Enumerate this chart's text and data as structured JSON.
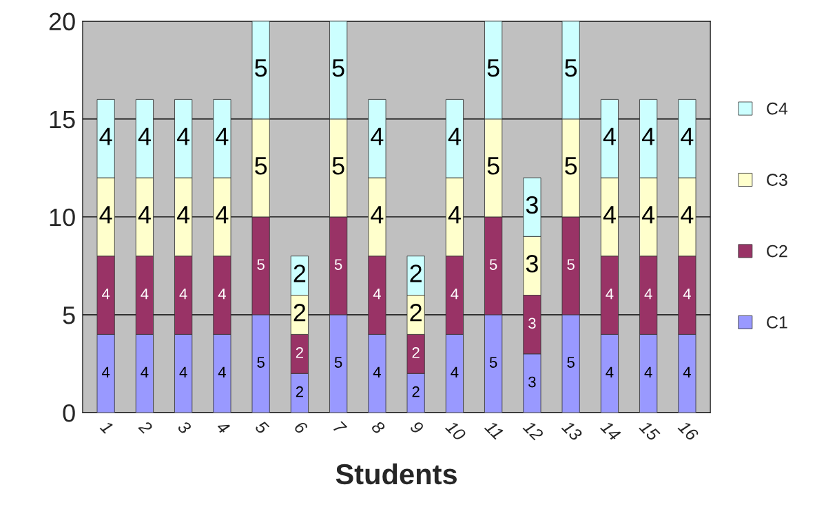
{
  "chart_data": {
    "type": "bar",
    "stacked": true,
    "xlabel": "Students",
    "categories": [
      "1",
      "2",
      "3",
      "4",
      "5",
      "6",
      "7",
      "8",
      "9",
      "10",
      "11",
      "12",
      "13",
      "14",
      "15",
      "16"
    ],
    "series": [
      {
        "name": "C1",
        "color": "#9999ff",
        "values": [
          4,
          4,
          4,
          4,
          5,
          2,
          5,
          4,
          2,
          4,
          5,
          3,
          5,
          4,
          4,
          4
        ]
      },
      {
        "name": "C2",
        "color": "#993366",
        "values": [
          4,
          4,
          4,
          4,
          5,
          2,
          5,
          4,
          2,
          4,
          5,
          3,
          5,
          4,
          4,
          4
        ]
      },
      {
        "name": "C3",
        "color": "#ffffcc",
        "values": [
          4,
          4,
          4,
          4,
          5,
          2,
          5,
          4,
          2,
          4,
          5,
          3,
          5,
          4,
          4,
          4
        ]
      },
      {
        "name": "C4",
        "color": "#ccffff",
        "values": [
          4,
          4,
          4,
          4,
          5,
          2,
          5,
          4,
          2,
          4,
          5,
          3,
          5,
          4,
          4,
          4
        ]
      }
    ],
    "ylim": [
      0,
      20
    ],
    "yticks": [
      0,
      5,
      10,
      15,
      20
    ],
    "grid": "y",
    "legend": "right",
    "data_labels": true
  }
}
